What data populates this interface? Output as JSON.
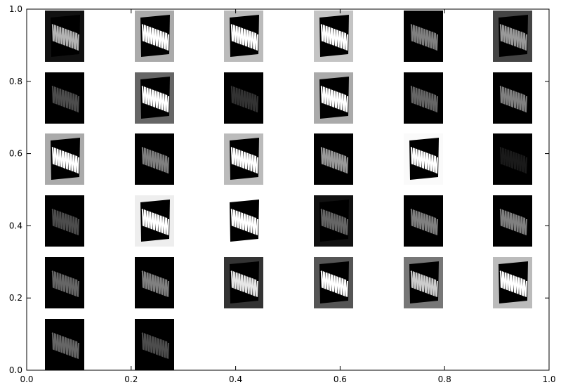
{
  "chart_data": {
    "type": "image-grid",
    "xlim": [
      0,
      1
    ],
    "ylim": [
      0,
      1
    ],
    "xticks": [
      {
        "value": 0,
        "label": "0.0"
      },
      {
        "value": 0.2,
        "label": "0.2"
      },
      {
        "value": 0.4,
        "label": "0.4"
      },
      {
        "value": 0.6,
        "label": "0.6"
      },
      {
        "value": 0.8,
        "label": "0.8"
      },
      {
        "value": 1,
        "label": "1.0"
      }
    ],
    "yticks": [
      {
        "value": 0,
        "label": "0.0"
      },
      {
        "value": 0.2,
        "label": "0.2"
      },
      {
        "value": 0.4,
        "label": "0.4"
      },
      {
        "value": 0.6,
        "label": "0.6"
      },
      {
        "value": 0.8,
        "label": "0.8"
      },
      {
        "value": 1,
        "label": "1.0"
      }
    ]
  }
}
